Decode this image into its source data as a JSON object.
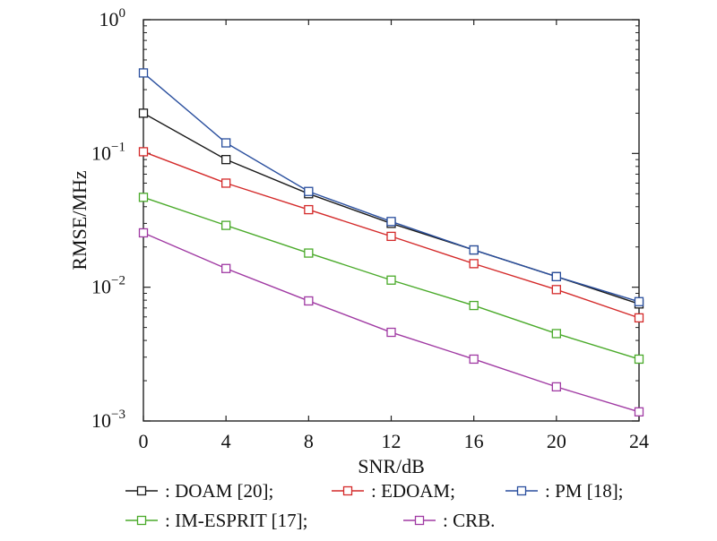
{
  "chart_data": {
    "type": "line",
    "yscale": "log",
    "x": [
      0,
      4,
      8,
      12,
      16,
      20,
      24
    ],
    "xlabel": "SNR/dB",
    "ylabel": "RMSE/MHz",
    "xlim": [
      0,
      24
    ],
    "ylim": [
      0.001,
      1
    ],
    "x_ticks": [
      "0",
      "4",
      "8",
      "12",
      "16",
      "20",
      "24"
    ],
    "y_ticks": [
      {
        "value": 1,
        "base": "10",
        "exp": "0"
      },
      {
        "value": 0.1,
        "base": "10",
        "exp": "−1"
      },
      {
        "value": 0.01,
        "base": "10",
        "exp": "−2"
      },
      {
        "value": 0.001,
        "base": "10",
        "exp": "−3"
      }
    ],
    "grid": false,
    "legend_position": "bottom",
    "series": [
      {
        "name": "DOAM [20];",
        "color": "#1a1a1a",
        "values": [
          0.2,
          0.09,
          0.05,
          0.03,
          0.019,
          0.012,
          0.0075
        ]
      },
      {
        "name": "EDOAM;",
        "color": "#d42a2a",
        "values": [
          0.103,
          0.06,
          0.038,
          0.024,
          0.015,
          0.0096,
          0.0059
        ]
      },
      {
        "name": "PM [18];",
        "color": "#2a4f9e",
        "values": [
          0.4,
          0.12,
          0.052,
          0.031,
          0.019,
          0.012,
          0.0078
        ]
      },
      {
        "name": "IM-ESPRIT [17];",
        "color": "#4aaa2a",
        "values": [
          0.047,
          0.029,
          0.018,
          0.0113,
          0.0073,
          0.0045,
          0.0029
        ]
      },
      {
        "name": "CRB.",
        "color": "#a03aa3",
        "values": [
          0.0255,
          0.0138,
          0.0079,
          0.0046,
          0.0029,
          0.0018,
          0.00117
        ]
      }
    ],
    "legend_separator": ": "
  }
}
